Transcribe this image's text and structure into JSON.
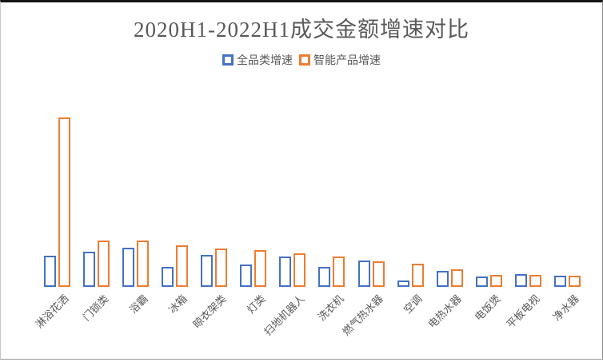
{
  "chart_data": {
    "type": "bar",
    "title": "2020H1-2022H1成交金额增速对比",
    "categories": [
      "淋浴花洒",
      "门锁类",
      "浴霸",
      "冰箱",
      "晾衣架类",
      "灯类",
      "扫地机器人",
      "洗衣机",
      "燃气热水器",
      "空调",
      "电热水器",
      "电饭煲",
      "平板电视",
      "净水器"
    ],
    "series": [
      {
        "name": "全品类增速",
        "color": "#4472C4",
        "values": [
          39,
          44,
          49,
          25,
          40,
          28,
          38,
          25,
          33,
          8,
          20,
          13,
          16,
          14
        ]
      },
      {
        "name": "智能产品增速",
        "color": "#ED7D31",
        "values": [
          212,
          58,
          58,
          52,
          48,
          46,
          42,
          38,
          32,
          29,
          22,
          15,
          15,
          14
        ]
      }
    ],
    "xlabel": "",
    "ylabel": "",
    "value_unit": "relative height (y-axis unlabeled, no gridlines)",
    "ylim": [
      0,
      220
    ],
    "grid": false,
    "axis_line": false,
    "legend_position": "top",
    "bar_style": "outlined-hollow",
    "x_label_rotation_deg": 45,
    "title_color": "#595959",
    "label_color": "#595959"
  }
}
